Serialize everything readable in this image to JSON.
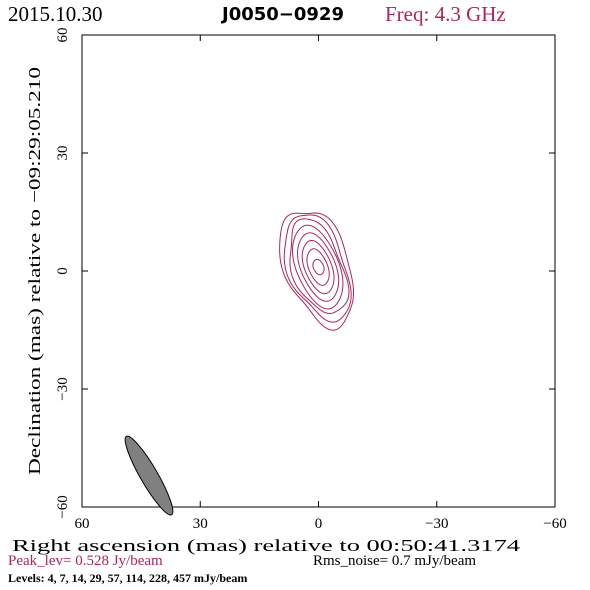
{
  "header": {
    "date": "2015.10.30",
    "source": "J0050−0929",
    "freq_label": "Freq: 4.3 GHz"
  },
  "footer": {
    "peak": "Peak_lev=  0.528 Jy/beam",
    "rms": "Rms_noise=  0.7 mJy/beam",
    "levels": "Levels:  4,  7,  14,  29,  57,  114,  228,  457 mJy/beam"
  },
  "colors": {
    "header_freq": "#b0245a",
    "contour": "#b0245a",
    "peak_text": "#b0245a",
    "beam_fill": "#808080",
    "text": "#000000"
  },
  "chart_data": {
    "type": "contour",
    "xlabel": "Right ascension (mas) relative to 00:50:41.3174",
    "ylabel": "Declination (mas) relative to −09:29:05.210",
    "xlim": [
      60,
      -60
    ],
    "ylim": [
      -60,
      60
    ],
    "xticks": [
      {
        "v": 60,
        "label": "60"
      },
      {
        "v": 30,
        "label": "30"
      },
      {
        "v": 0,
        "label": "0"
      },
      {
        "v": -30,
        "label": "−30"
      },
      {
        "v": -60,
        "label": "−60"
      }
    ],
    "yticks": [
      {
        "v": -60,
        "label": "−60"
      },
      {
        "v": -30,
        "label": "−30"
      },
      {
        "v": 0,
        "label": "0"
      },
      {
        "v": 30,
        "label": "30"
      },
      {
        "v": 60,
        "label": "60"
      }
    ],
    "levels_mJy": [
      4,
      7,
      14,
      29,
      57,
      114,
      228,
      457
    ],
    "peak_Jy_per_beam": 0.528,
    "rms_mJy_per_beam": 0.7,
    "contours": [
      {
        "level": 4,
        "cx": 0.3,
        "cy": 1.0,
        "semi_major": 15.5,
        "semi_minor": 8.2,
        "pa_deg": -20
      },
      {
        "level": 7,
        "cx": 0.3,
        "cy": 1.0,
        "semi_major": 14.2,
        "semi_minor": 7.2,
        "pa_deg": -20
      },
      {
        "level": 14,
        "cx": 0.2,
        "cy": 1.0,
        "semi_major": 12.6,
        "semi_minor": 6.3,
        "pa_deg": -20
      },
      {
        "level": 29,
        "cx": 0.2,
        "cy": 1.0,
        "semi_major": 11.0,
        "semi_minor": 5.4,
        "pa_deg": -20
      },
      {
        "level": 57,
        "cx": 0.1,
        "cy": 1.0,
        "semi_major": 9.0,
        "semi_minor": 4.4,
        "pa_deg": -20
      },
      {
        "level": 114,
        "cx": 0.1,
        "cy": 1.0,
        "semi_major": 7.0,
        "semi_minor": 3.4,
        "pa_deg": -20
      },
      {
        "level": 228,
        "cx": 0.1,
        "cy": 1.0,
        "semi_major": 4.8,
        "semi_minor": 2.4,
        "pa_deg": -20
      },
      {
        "level": 457,
        "cx": 0.0,
        "cy": 1.0,
        "semi_major": 2.0,
        "semi_minor": 1.3,
        "pa_deg": -20
      }
    ],
    "beam": {
      "ra": 43,
      "dec": -52,
      "major_mas": 11.5,
      "minor_mas": 4.4,
      "pa_deg": -30
    }
  }
}
